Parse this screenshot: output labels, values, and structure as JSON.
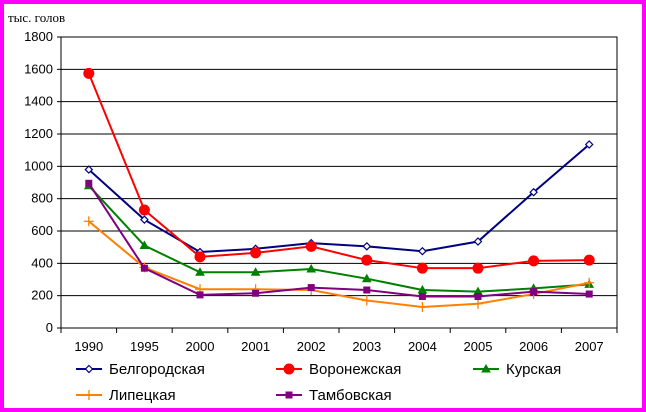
{
  "chart_data": {
    "type": "line",
    "ylabel": "тыс. голов",
    "categories": [
      "1990",
      "1995",
      "2000",
      "2001",
      "2002",
      "2003",
      "2004",
      "2005",
      "2006",
      "2007"
    ],
    "ylim": [
      0,
      1800
    ],
    "yticks": [
      0,
      200,
      400,
      600,
      800,
      1000,
      1200,
      1400,
      1600,
      1800
    ],
    "grid": true,
    "legend_placement": "bottom",
    "series": [
      {
        "name": "Белгородская",
        "color": "#000080",
        "marker": "diamond-open",
        "values": [
          980,
          670,
          470,
          490,
          525,
          505,
          475,
          535,
          840,
          1135
        ]
      },
      {
        "name": "Воронежская",
        "color": "#ff0000",
        "marker": "circle",
        "values": [
          1575,
          730,
          440,
          465,
          505,
          420,
          370,
          370,
          415,
          420
        ]
      },
      {
        "name": "Курская",
        "color": "#008000",
        "marker": "triangle",
        "values": [
          880,
          510,
          345,
          345,
          365,
          305,
          235,
          225,
          245,
          270
        ]
      },
      {
        "name": "Липецкая",
        "color": "#ff8000",
        "marker": "plus",
        "values": [
          660,
          375,
          240,
          240,
          235,
          170,
          130,
          150,
          210,
          280
        ]
      },
      {
        "name": "Тамбовская",
        "color": "#800080",
        "marker": "square",
        "values": [
          895,
          370,
          205,
          215,
          250,
          235,
          195,
          195,
          225,
          210
        ]
      }
    ]
  }
}
